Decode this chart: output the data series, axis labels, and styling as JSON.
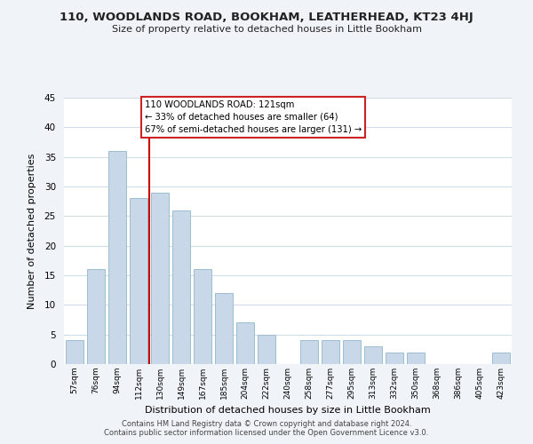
{
  "title": "110, WOODLANDS ROAD, BOOKHAM, LEATHERHEAD, KT23 4HJ",
  "subtitle": "Size of property relative to detached houses in Little Bookham",
  "xlabel": "Distribution of detached houses by size in Little Bookham",
  "ylabel": "Number of detached properties",
  "bar_color": "#c8d8e8",
  "bar_edge_color": "#9bbdd4",
  "categories": [
    "57sqm",
    "76sqm",
    "94sqm",
    "112sqm",
    "130sqm",
    "149sqm",
    "167sqm",
    "185sqm",
    "204sqm",
    "222sqm",
    "240sqm",
    "258sqm",
    "277sqm",
    "295sqm",
    "313sqm",
    "332sqm",
    "350sqm",
    "368sqm",
    "386sqm",
    "405sqm",
    "423sqm"
  ],
  "values": [
    4,
    16,
    36,
    28,
    29,
    26,
    16,
    12,
    7,
    5,
    0,
    4,
    4,
    4,
    3,
    2,
    2,
    0,
    0,
    0,
    2
  ],
  "vline_x": 3.5,
  "vline_color": "#cc0000",
  "annotation_line1": "110 WOODLANDS ROAD: 121sqm",
  "annotation_line2": "← 33% of detached houses are smaller (64)",
  "annotation_line3": "67% of semi-detached houses are larger (131) →",
  "annotation_box_color": "#ffffff",
  "annotation_box_edge": "#cc2222",
  "ylim": [
    0,
    45
  ],
  "yticks": [
    0,
    5,
    10,
    15,
    20,
    25,
    30,
    35,
    40,
    45
  ],
  "footer1": "Contains HM Land Registry data © Crown copyright and database right 2024.",
  "footer2": "Contains public sector information licensed under the Open Government Licence v3.0.",
  "bg_color": "#f0f4f8",
  "plot_bg_color": "#ffffff",
  "grid_color": "#d0dde8"
}
